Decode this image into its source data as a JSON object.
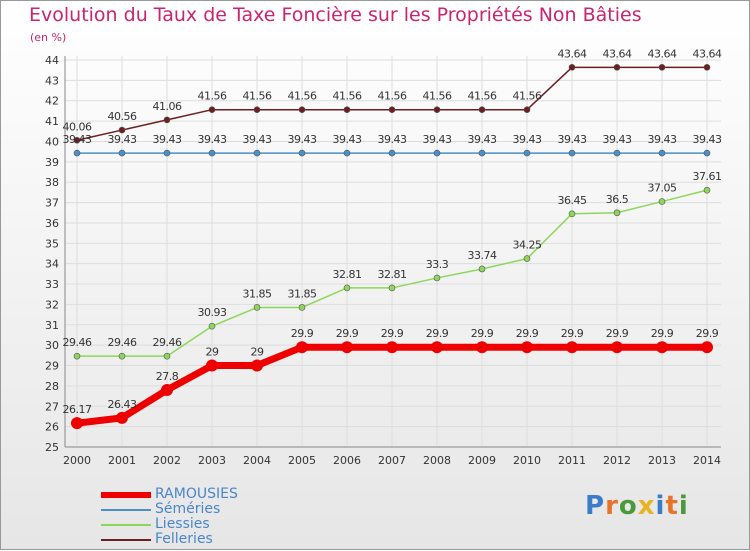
{
  "title": "Evolution du Taux de Taxe Foncière sur les Propriétés Non Bâties",
  "unit": "(en %)",
  "logo": {
    "text": "Proxiti",
    "letters": [
      "P",
      "r",
      "o",
      "x",
      "i",
      "t",
      "i"
    ],
    "colors": [
      "#3a7cc7",
      "#e8732a",
      "#4a9a3a",
      "#e8b321",
      "#3a7cc7",
      "#e8732a",
      "#4a9a3a"
    ]
  },
  "chart_data": {
    "type": "line",
    "x": [
      2000,
      2001,
      2002,
      2003,
      2004,
      2005,
      2006,
      2007,
      2008,
      2009,
      2010,
      2011,
      2012,
      2013,
      2014
    ],
    "ylim": [
      25,
      44
    ],
    "yticks": [
      25,
      26,
      27,
      28,
      29,
      30,
      31,
      32,
      33,
      34,
      35,
      36,
      37,
      38,
      39,
      40,
      41,
      42,
      43,
      44
    ],
    "series": [
      {
        "name": "Felleries",
        "color": "#6b1f1f",
        "width": 1.5,
        "values": [
          40.06,
          40.56,
          41.06,
          41.56,
          41.56,
          41.56,
          41.56,
          41.56,
          41.56,
          41.56,
          41.56,
          43.64,
          43.64,
          43.64,
          43.64
        ],
        "labels": [
          "40.06",
          "40.56",
          "41.06",
          "41.56",
          "41.56",
          "41.56",
          "41.56",
          "41.56",
          "41.56",
          "41.56",
          "41.56",
          "43.64",
          "43.64",
          "43.64",
          "43.64"
        ]
      },
      {
        "name": "Séméries",
        "color": "#4a90c8",
        "width": 1.5,
        "values": [
          39.43,
          39.43,
          39.43,
          39.43,
          39.43,
          39.43,
          39.43,
          39.43,
          39.43,
          39.43,
          39.43,
          39.43,
          39.43,
          39.43,
          39.43
        ],
        "labels": [
          "39.43",
          "39.43",
          "39.43",
          "39.43",
          "39.43",
          "39.43",
          "39.43",
          "39.43",
          "39.43",
          "39.43",
          "39.43",
          "39.43",
          "39.43",
          "39.43",
          "39.43"
        ]
      },
      {
        "name": "Liessies",
        "color": "#8ed65a",
        "width": 1.5,
        "values": [
          29.46,
          29.46,
          29.46,
          30.93,
          31.85,
          31.85,
          32.81,
          32.81,
          33.3,
          33.74,
          34.25,
          36.45,
          36.5,
          37.05,
          37.61
        ],
        "labels": [
          "29.46",
          "29.46",
          "29.46",
          "30.93",
          "31.85",
          "31.85",
          "32.81",
          "32.81",
          "33.3",
          "33.74",
          "34.25",
          "36.45",
          "36.5",
          "37.05",
          "37.61"
        ]
      },
      {
        "name": "RAMOUSIES",
        "color": "#ee0000",
        "width": 7,
        "values": [
          26.17,
          26.43,
          27.8,
          29,
          29,
          29.9,
          29.9,
          29.9,
          29.9,
          29.9,
          29.9,
          29.9,
          29.9,
          29.9,
          29.9
        ],
        "labels": [
          "26.17",
          "26.43",
          "27.8",
          "29",
          "29",
          "29.9",
          "29.9",
          "29.9",
          "29.9",
          "29.9",
          "29.9",
          "29.9",
          "29.9",
          "29.9",
          "29.9"
        ]
      }
    ],
    "legend": [
      "RAMOUSIES",
      "Séméries",
      "Liessies",
      "Felleries"
    ]
  }
}
